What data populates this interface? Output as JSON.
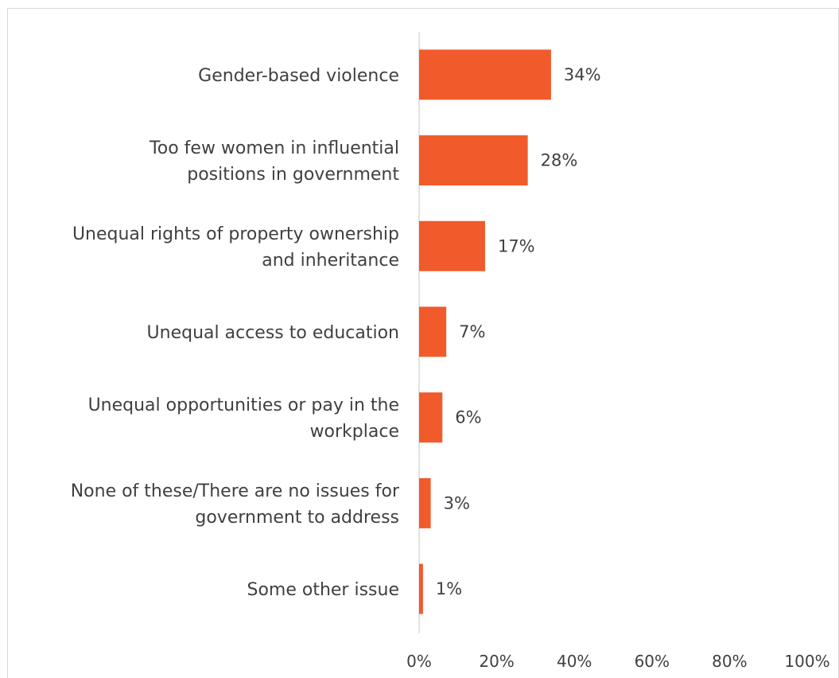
{
  "chart_data": {
    "type": "bar",
    "orientation": "horizontal",
    "categories": [
      "Gender-based violence",
      "Too few women in influential positions in government",
      "Unequal rights of property ownership and inheritance",
      "Unequal access to education",
      "Unequal opportunities or pay in the workplace",
      "None of these/There are no issues for government to address",
      "Some other issue"
    ],
    "category_lines": [
      [
        "Gender-based violence"
      ],
      [
        "Too few women in influential",
        "positions in government"
      ],
      [
        "Unequal rights of property ownership",
        "and inheritance"
      ],
      [
        "Unequal access to education"
      ],
      [
        "Unequal opportunities or pay in the",
        "workplace"
      ],
      [
        "None of these/There are no issues for",
        "government to address"
      ],
      [
        "Some other issue"
      ]
    ],
    "values": [
      34,
      28,
      17,
      7,
      6,
      3,
      1
    ],
    "data_labels": [
      "34%",
      "28%",
      "17%",
      "7%",
      "6%",
      "3%",
      "1%"
    ],
    "xlim": [
      0,
      100
    ],
    "x_ticks": [
      0,
      20,
      40,
      60,
      80,
      100
    ],
    "x_tick_labels": [
      "0%",
      "20%",
      "40%",
      "60%",
      "80%",
      "100%"
    ],
    "title": "",
    "xlabel": "",
    "ylabel": "",
    "grid": false,
    "legend": "none",
    "bar_color": "#f15a2b",
    "axis_color": "#d9d9d9",
    "text_color": "#404040"
  }
}
